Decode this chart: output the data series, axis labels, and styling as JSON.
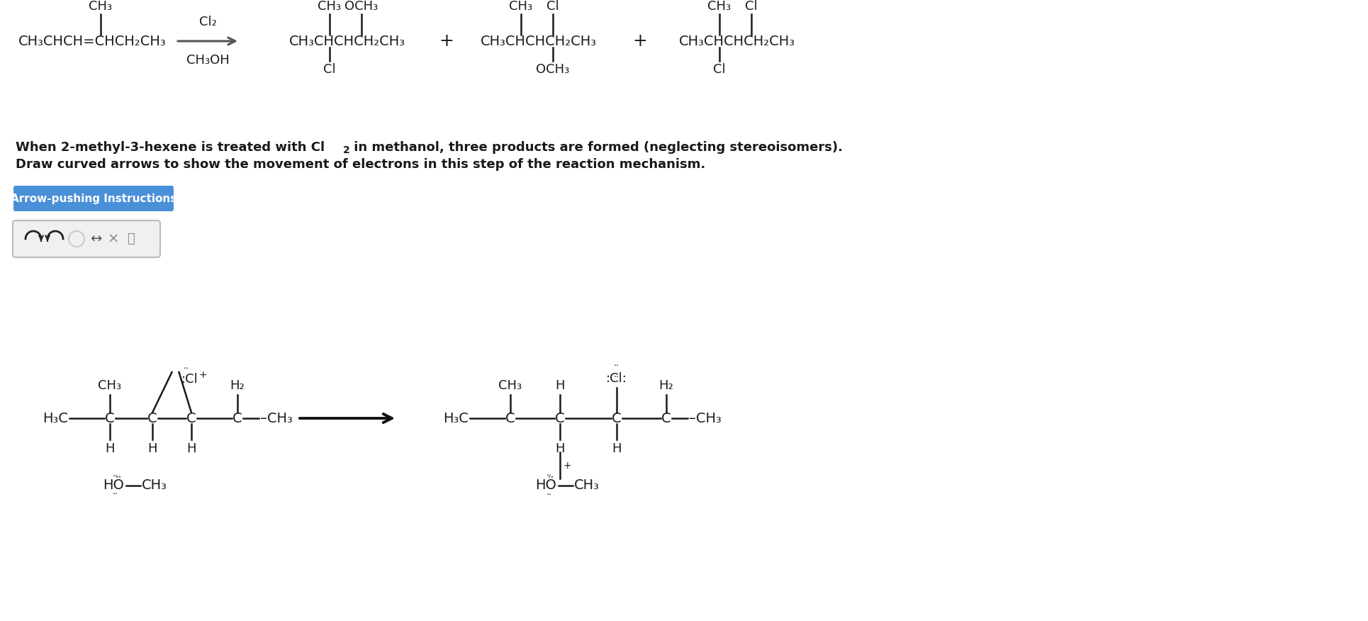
{
  "bg_color": "#ffffff",
  "text_color": "#1a1a1a",
  "fig_width": 19.3,
  "fig_height": 8.76,
  "dpi": 100,
  "top_reactant_branch": "CH₃",
  "top_reactant_main": "CH₃CHCH=CHCH₂CH₃",
  "reagent_top": "Cl₂",
  "reagent_bottom": "CH₃OH",
  "p1_tl": "CH₃",
  "p1_tr": "OCH₃",
  "p1_main": "CH₃CHCHCH₂CH₃",
  "p1_bot": "Cl",
  "p2_tl": "CH₃",
  "p2_tr": "Cl",
  "p2_main": "CH₃CHCHCH₂CH₃",
  "p2_bot": "OCH₃",
  "p3_tl": "CH₃",
  "p3_tr": "Cl",
  "p3_main": "CH₃CHCHCH₂CH₃",
  "p3_bot": "Cl",
  "plus": "+",
  "desc1a": "When 2-methyl-3-hexene is treated with Cl",
  "desc1_sub": "2",
  "desc1b": " in methanol, three products are formed (neglecting stereoisomers).",
  "desc2": "Draw curved arrows to show the movement of electrons in this step of the reaction mechanism.",
  "btn_label": "Arrow-pushing Instructions",
  "btn_color": "#4a90d9",
  "btn_text_color": "#ffffff",
  "lm_prefix": "H₃C",
  "lm_suffix": "–CH₃",
  "lm_ch3_label": "CH₃",
  "lm_cl_label": ":Cl",
  "lm_cl_charge": "+",
  "lm_h2_label": "H₂",
  "lm_h_labels": [
    "H",
    "H",
    "H"
  ],
  "lm_methanol": "HÖ–CH₃",
  "rm_prefix": "H₃C",
  "rm_suffix": "–CH₃",
  "rm_ch3_label": "CH₃",
  "rm_h_top": "H",
  "rm_cl_label": ":Cl:",
  "rm_h2_label": "H₂",
  "rm_h_bot1": "H",
  "rm_h_bot2": "H",
  "rm_methanol": "HÖ–CH₃",
  "rm_plus": "+"
}
